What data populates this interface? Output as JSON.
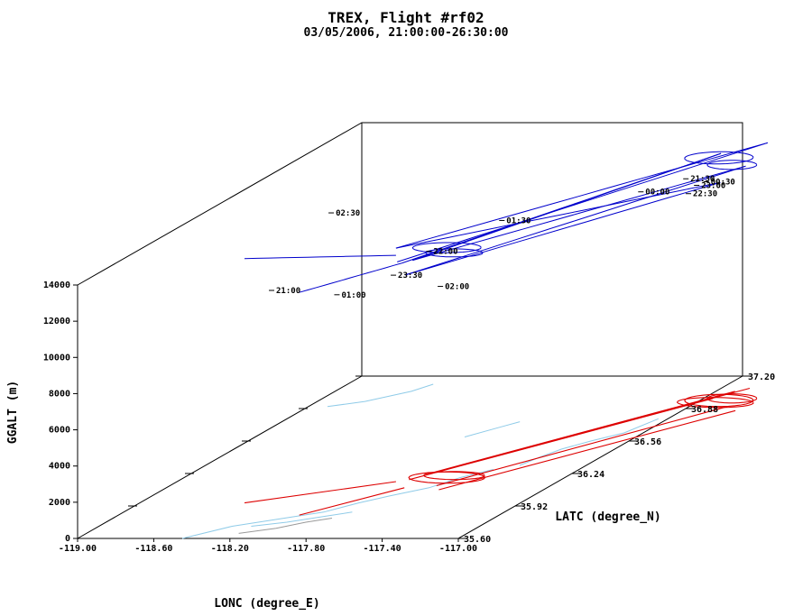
{
  "chart_data": {
    "type": "line",
    "projection": "3d",
    "title": "TREX, Flight #rf02",
    "subtitle": "03/05/2006, 21:00:00-26:30:00",
    "xlabel": "LONC (degree_E)",
    "ylabel": "LATC (degree_N)",
    "zlabel": "GGALT (m)",
    "xlim": [
      -119.0,
      -117.0
    ],
    "ylim": [
      35.6,
      37.2
    ],
    "zlim": [
      0,
      14000
    ],
    "xticks": [
      "-119.00",
      "-118.60",
      "-118.20",
      "-117.80",
      "-117.40",
      "-117.00"
    ],
    "yticks": [
      "35.60",
      "35.92",
      "36.24",
      "36.56",
      "36.88",
      "37.20"
    ],
    "zticks": [
      "0",
      "2000",
      "4000",
      "6000",
      "8000",
      "10000",
      "12000",
      "14000"
    ],
    "series": [
      {
        "role": "flight-track-3d",
        "color": "#0000cc",
        "points": [
          {
            "time": "21:00",
            "lon": -118.2,
            "lat": 35.85,
            "alt": 12300
          },
          {
            "lon": -117.8,
            "lat": 36.25,
            "alt": 12300
          },
          {
            "time": "21:30",
            "lon": -117.05,
            "lat": 36.95,
            "alt": 12300
          },
          {
            "lon": -116.9,
            "lat": 37.0,
            "alt": 12350
          },
          {
            "time": "22:00",
            "lon": -117.7,
            "lat": 36.2,
            "alt": 12500
          },
          {
            "time": "22:30",
            "lon": -116.85,
            "lat": 36.75,
            "alt": 12600
          },
          {
            "time": "23:00",
            "lon": -116.9,
            "lat": 36.85,
            "alt": 12500
          },
          {
            "time": "23:30",
            "lon": -117.7,
            "lat": 36.0,
            "alt": 12300
          },
          {
            "time": "00:00",
            "lon": -117.1,
            "lat": 36.75,
            "alt": 12700
          },
          {
            "time": "00:30",
            "lon": -116.85,
            "lat": 36.85,
            "alt": 12700
          },
          {
            "time": "01:00",
            "lon": -117.95,
            "lat": 35.95,
            "alt": 11500
          },
          {
            "time": "01:30",
            "lon": -117.55,
            "lat": 36.45,
            "alt": 12800
          },
          {
            "time": "02:00",
            "lon": -117.5,
            "lat": 36.05,
            "alt": 11400
          },
          {
            "time": "02:30",
            "lon": -118.4,
            "lat": 36.4,
            "alt": 13500
          }
        ]
      },
      {
        "role": "ground-track-projection",
        "color": "#dd0000"
      },
      {
        "role": "terrain-contours",
        "color": "#88c8e8"
      }
    ],
    "time_labels": [
      "21:00",
      "21:30",
      "22:00",
      "22:30",
      "23:00",
      "23:30",
      "00:00",
      "00:30",
      "01:00",
      "01:30",
      "02:00",
      "02:30"
    ]
  }
}
